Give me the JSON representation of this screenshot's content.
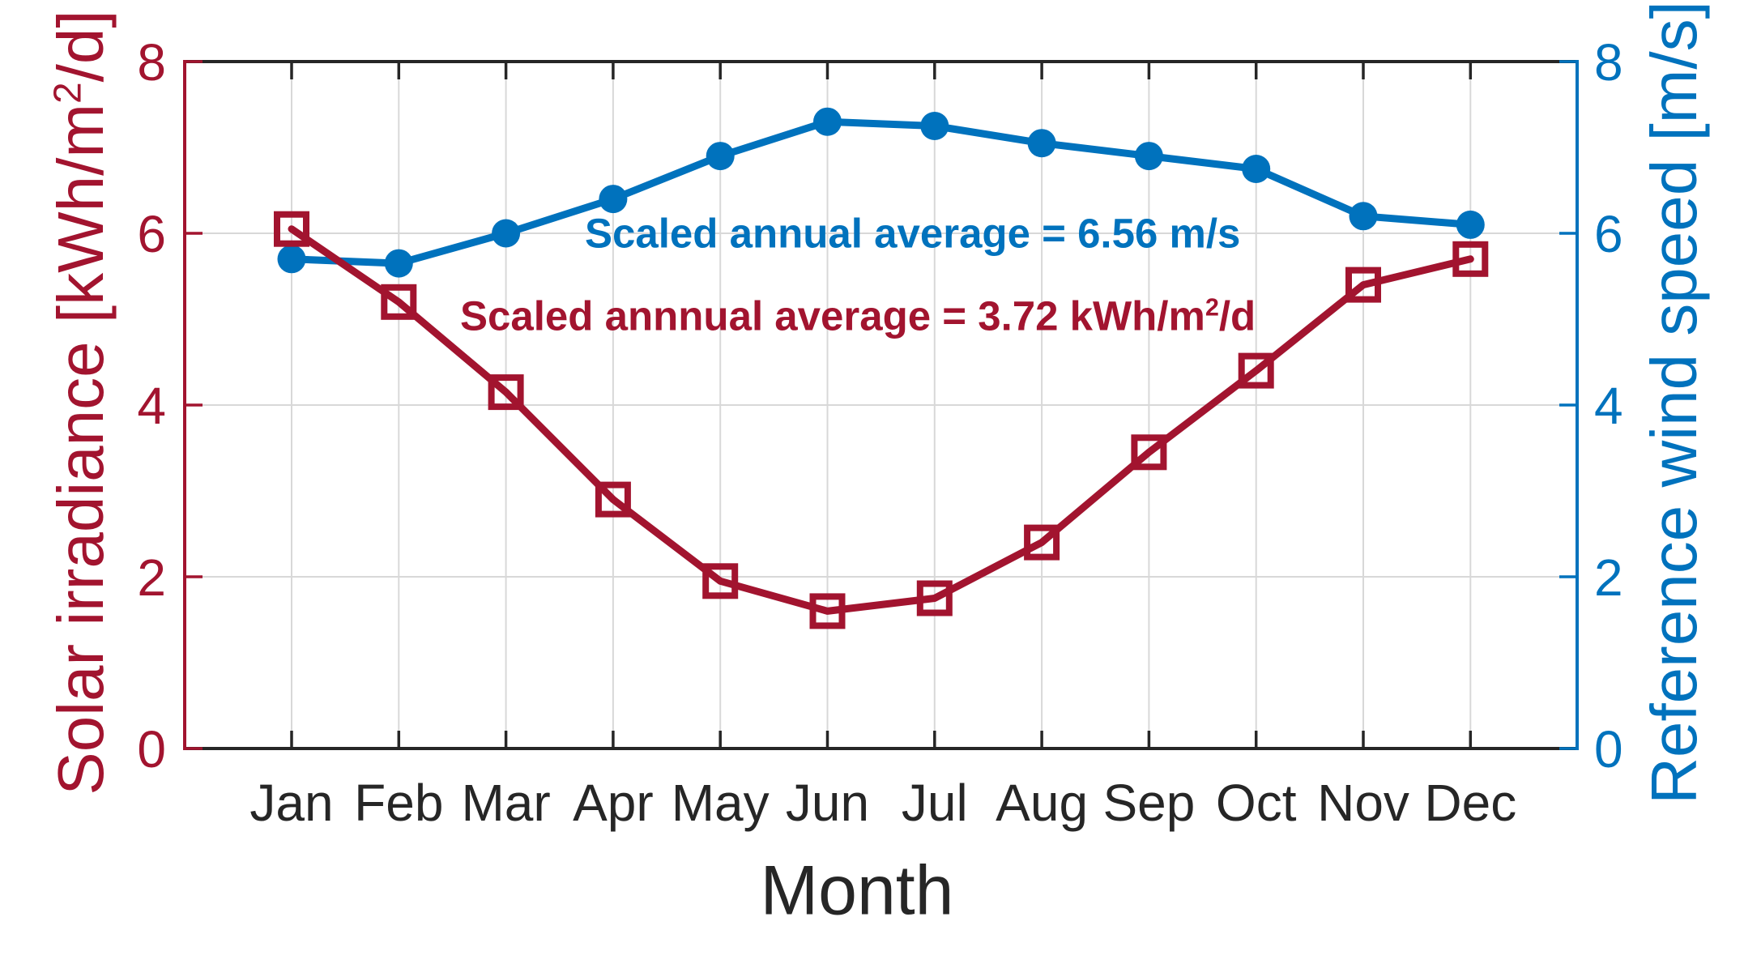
{
  "figure": {
    "background": "#ffffff",
    "axis_color": "#262626",
    "grid_color": "#d8d8d8",
    "xlabel": "Month",
    "left_axis": {
      "label_prefix": "Solar irradiance [kWh/m",
      "label_sup": "2",
      "label_suffix": "/d]",
      "color": "#A2142F",
      "tick_labels": [
        "0",
        "2",
        "4",
        "6",
        "8"
      ]
    },
    "right_axis": {
      "label": "Reference wind speed [m/s]",
      "color": "#0072BD",
      "tick_labels": [
        "0",
        "2",
        "4",
        "6",
        "8"
      ]
    }
  },
  "chart_data": {
    "type": "line",
    "title": "",
    "xlabel": "Month",
    "categories": [
      "Jan",
      "Feb",
      "Mar",
      "Apr",
      "May",
      "Jun",
      "Jul",
      "Aug",
      "Sep",
      "Oct",
      "Nov",
      "Dec"
    ],
    "series": [
      {
        "name": "Solar irradiance",
        "axis": "left",
        "color": "#A2142F",
        "marker": "square",
        "values": [
          6.05,
          5.2,
          4.15,
          2.9,
          1.95,
          1.6,
          1.75,
          2.4,
          3.45,
          4.4,
          5.4,
          5.7
        ]
      },
      {
        "name": "Reference wind speed",
        "axis": "right",
        "color": "#0072BD",
        "marker": "circle",
        "values": [
          5.7,
          5.65,
          6.0,
          6.4,
          6.9,
          7.3,
          7.25,
          7.05,
          6.9,
          6.75,
          6.2,
          6.1
        ]
      }
    ],
    "ylim": [
      0,
      8
    ],
    "yticks": [
      0,
      2,
      4,
      6,
      8
    ],
    "grid": true,
    "legend": "none",
    "annotations": [
      {
        "id": "wind-average",
        "text": "Scaled annual average = 6.56 m/s",
        "color": "#0072BD",
        "x": 722,
        "y": 288
      },
      {
        "id": "solar-average",
        "text_prefix": "Scaled annnual average = 3.72 kWh/m",
        "text_sup": "2",
        "text_suffix": "/d",
        "color": "#A2142F",
        "x": 568,
        "y": 390
      }
    ]
  }
}
